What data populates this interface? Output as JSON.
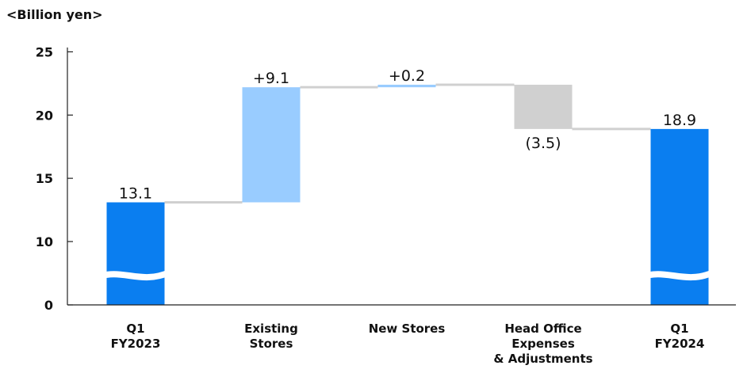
{
  "chart_data": {
    "type": "bar",
    "subtype": "waterfall",
    "unit_label": "<Billion yen>",
    "ylim": [
      0,
      25
    ],
    "axis_break": true,
    "yticks": [
      "0",
      "10",
      "15",
      "20",
      "25"
    ],
    "categories": [
      [
        "Q1",
        "FY2023"
      ],
      [
        "Existing",
        "Stores"
      ],
      [
        "New Stores"
      ],
      [
        "Head Office",
        "Expenses",
        "& Adjustments"
      ],
      [
        "Q1",
        "FY2024"
      ]
    ],
    "bars": [
      {
        "kind": "total",
        "start": 0,
        "end": 13.1,
        "label": "13.1",
        "color": "#0a7ef0"
      },
      {
        "kind": "increase",
        "start": 13.1,
        "end": 22.2,
        "label": "+9.1",
        "color": "#99ccff"
      },
      {
        "kind": "increase",
        "start": 22.2,
        "end": 22.4,
        "label": "+0.2",
        "color": "#99ccff"
      },
      {
        "kind": "decrease",
        "start": 22.4,
        "end": 18.9,
        "label": "(3.5)",
        "color": "#d0d0d0"
      },
      {
        "kind": "total",
        "start": 0,
        "end": 18.9,
        "label": "18.9",
        "color": "#0a7ef0"
      }
    ],
    "grid": false,
    "legend": "none"
  }
}
